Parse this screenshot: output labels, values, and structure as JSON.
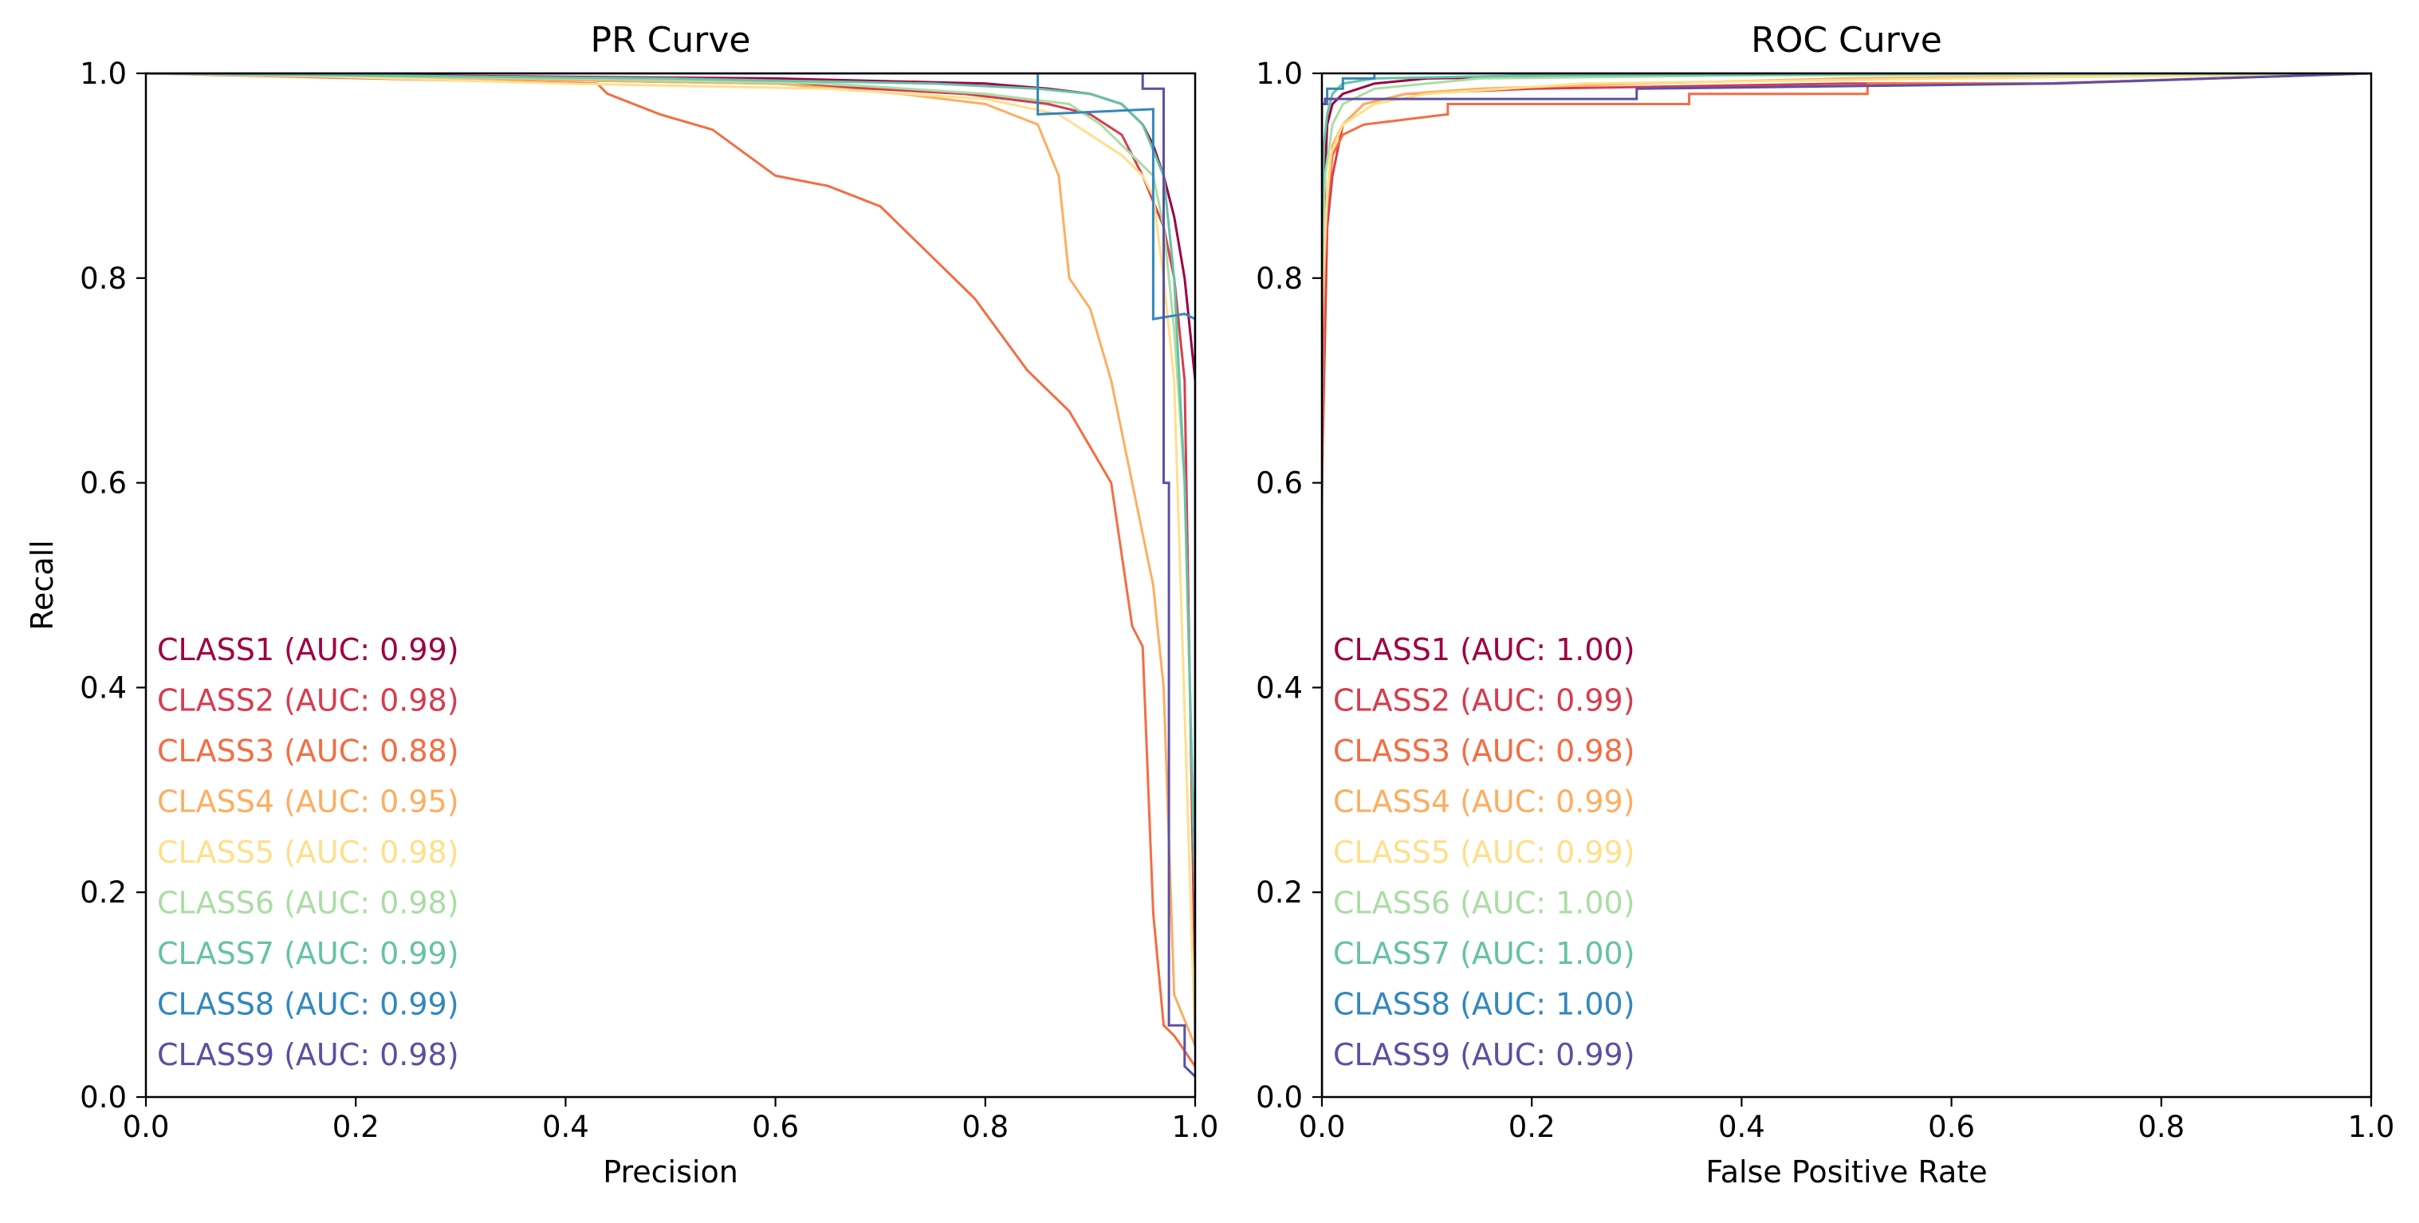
{
  "chart_data": [
    {
      "type": "line",
      "title": "PR Curve",
      "xlabel": "Precision",
      "ylabel": "Recall",
      "xlim": [
        0,
        1
      ],
      "ylim": [
        0,
        1
      ],
      "xticks": [
        "0.0",
        "0.2",
        "0.4",
        "0.6",
        "0.8",
        "1.0"
      ],
      "yticks": [
        "0.0",
        "0.2",
        "0.4",
        "0.6",
        "0.8",
        "1.0"
      ],
      "grid": false,
      "legend": "left, text-only",
      "series": [
        {
          "name": "CLASS1",
          "label": "CLASS1 (AUC: 0.99)",
          "color": "#9e0142",
          "x": [
            0.0,
            0.6,
            0.8,
            0.86,
            0.9,
            0.93,
            0.95,
            0.96,
            0.97,
            0.98,
            0.99,
            1.0,
            1.0
          ],
          "y": [
            1.0,
            0.995,
            0.99,
            0.985,
            0.98,
            0.97,
            0.95,
            0.93,
            0.9,
            0.86,
            0.8,
            0.7,
            0.05
          ]
        },
        {
          "name": "CLASS2",
          "label": "CLASS2 (AUC: 0.98)",
          "color": "#d53e4f",
          "x": [
            0.0,
            0.3,
            0.6,
            0.78,
            0.86,
            0.9,
            0.93,
            0.95,
            0.97,
            0.98,
            0.99,
            1.0
          ],
          "y": [
            1.0,
            0.995,
            0.99,
            0.98,
            0.97,
            0.96,
            0.94,
            0.9,
            0.85,
            0.8,
            0.7,
            0.1
          ]
        },
        {
          "name": "CLASS3",
          "label": "CLASS3 (AUC: 0.88)",
          "color": "#f46d43",
          "x": [
            0.0,
            0.43,
            0.44,
            0.49,
            0.54,
            0.6,
            0.65,
            0.7,
            0.72,
            0.75,
            0.79,
            0.84,
            0.88,
            0.92,
            0.94,
            0.95,
            0.96,
            0.97,
            0.98,
            1.0
          ],
          "y": [
            1.0,
            0.99,
            0.98,
            0.96,
            0.945,
            0.9,
            0.89,
            0.87,
            0.85,
            0.82,
            0.78,
            0.71,
            0.67,
            0.6,
            0.46,
            0.44,
            0.18,
            0.07,
            0.06,
            0.03
          ]
        },
        {
          "name": "CLASS4",
          "label": "CLASS4 (AUC: 0.95)",
          "color": "#fdae61",
          "x": [
            0.0,
            0.3,
            0.6,
            0.72,
            0.8,
            0.85,
            0.87,
            0.88,
            0.9,
            0.92,
            0.93,
            0.94,
            0.95,
            0.96,
            0.97,
            0.98,
            1.0
          ],
          "y": [
            1.0,
            0.995,
            0.99,
            0.98,
            0.97,
            0.95,
            0.9,
            0.8,
            0.77,
            0.7,
            0.65,
            0.6,
            0.55,
            0.5,
            0.4,
            0.1,
            0.05
          ]
        },
        {
          "name": "CLASS5",
          "label": "CLASS5 (AUC: 0.98)",
          "color": "#fee08b",
          "x": [
            0.0,
            0.17,
            0.4,
            0.65,
            0.8,
            0.87,
            0.9,
            0.93,
            0.95,
            0.96,
            0.97,
            0.98,
            1.0
          ],
          "y": [
            1.0,
            0.997,
            0.99,
            0.985,
            0.975,
            0.96,
            0.94,
            0.92,
            0.9,
            0.88,
            0.8,
            0.7,
            0.05
          ]
        },
        {
          "name": "CLASS6",
          "label": "CLASS6 (AUC: 0.98)",
          "color": "#abdda4",
          "x": [
            0.0,
            0.4,
            0.65,
            0.8,
            0.88,
            0.91,
            0.94,
            0.96,
            0.97,
            0.98,
            0.99,
            1.0
          ],
          "y": [
            1.0,
            0.995,
            0.99,
            0.98,
            0.97,
            0.95,
            0.92,
            0.9,
            0.85,
            0.75,
            0.6,
            0.2
          ]
        },
        {
          "name": "CLASS7",
          "label": "CLASS7 (AUC: 0.99)",
          "color": "#66c2a5",
          "x": [
            0.0,
            0.5,
            0.75,
            0.85,
            0.9,
            0.93,
            0.95,
            0.97,
            0.98,
            0.99,
            1.0
          ],
          "y": [
            1.0,
            0.995,
            0.99,
            0.985,
            0.98,
            0.97,
            0.95,
            0.9,
            0.8,
            0.6,
            0.2
          ]
        },
        {
          "name": "CLASS8",
          "label": "CLASS8 (AUC: 0.99)",
          "color": "#3288bd",
          "x": [
            0.0,
            0.85,
            0.85,
            0.96,
            0.96,
            0.96,
            0.99,
            1.0,
            1.0
          ],
          "y": [
            1.0,
            1.0,
            0.96,
            0.965,
            0.96,
            0.76,
            0.765,
            0.76,
            0.05
          ]
        },
        {
          "name": "CLASS9",
          "label": "CLASS9 (AUC: 0.98)",
          "color": "#5e4fa2",
          "x": [
            0.0,
            0.95,
            0.95,
            0.97,
            0.97,
            0.975,
            0.975,
            0.99,
            0.99,
            1.0
          ],
          "y": [
            1.0,
            1.0,
            0.985,
            0.985,
            0.6,
            0.6,
            0.07,
            0.07,
            0.03,
            0.02
          ]
        }
      ]
    },
    {
      "type": "line",
      "title": "ROC Curve",
      "xlabel": "False Positive Rate",
      "ylabel": "",
      "xlim": [
        0,
        1
      ],
      "ylim": [
        0,
        1
      ],
      "xticks": [
        "0.0",
        "0.2",
        "0.4",
        "0.6",
        "0.8",
        "1.0"
      ],
      "yticks": [
        "0.0",
        "0.2",
        "0.4",
        "0.6",
        "0.8",
        "1.0"
      ],
      "grid": false,
      "legend": "left, text-only",
      "series": [
        {
          "name": "CLASS1",
          "label": "CLASS1 (AUC: 1.00)",
          "color": "#9e0142",
          "x": [
            0.0,
            0.0,
            0.003,
            0.005,
            0.01,
            0.02,
            0.05,
            0.1,
            0.3,
            0.6,
            1.0
          ],
          "y": [
            0.0,
            0.7,
            0.9,
            0.95,
            0.97,
            0.98,
            0.99,
            0.995,
            0.998,
            1.0,
            1.0
          ]
        },
        {
          "name": "CLASS2",
          "label": "CLASS2 (AUC: 0.99)",
          "color": "#d53e4f",
          "x": [
            0.0,
            0.0,
            0.005,
            0.01,
            0.02,
            0.04,
            0.08,
            0.2,
            0.5,
            0.69,
            1.0
          ],
          "y": [
            0.0,
            0.6,
            0.85,
            0.9,
            0.95,
            0.97,
            0.98,
            0.985,
            0.99,
            0.99,
            1.0
          ]
        },
        {
          "name": "CLASS3",
          "label": "CLASS3 (AUC: 0.98)",
          "color": "#f46d43",
          "x": [
            0.0,
            0.0,
            0.003,
            0.01,
            0.02,
            0.04,
            0.12,
            0.12,
            0.35,
            0.35,
            0.52,
            0.52,
            0.69,
            1.0
          ],
          "y": [
            0.0,
            0.58,
            0.85,
            0.92,
            0.94,
            0.95,
            0.96,
            0.97,
            0.97,
            0.98,
            0.98,
            0.99,
            0.99,
            1.0
          ]
        },
        {
          "name": "CLASS4",
          "label": "CLASS4 (AUC: 0.99)",
          "color": "#fdae61",
          "x": [
            0.0,
            0.0,
            0.005,
            0.01,
            0.02,
            0.04,
            0.08,
            0.15,
            0.3,
            0.5,
            1.0
          ],
          "y": [
            0.0,
            0.75,
            0.88,
            0.93,
            0.95,
            0.97,
            0.98,
            0.985,
            0.99,
            0.995,
            1.0
          ]
        },
        {
          "name": "CLASS5",
          "label": "CLASS5 (AUC: 0.99)",
          "color": "#fee08b",
          "x": [
            0.0,
            0.0,
            0.003,
            0.008,
            0.02,
            0.05,
            0.1,
            0.25,
            0.6,
            1.0
          ],
          "y": [
            0.0,
            0.77,
            0.85,
            0.92,
            0.95,
            0.97,
            0.98,
            0.99,
            0.995,
            1.0
          ]
        },
        {
          "name": "CLASS6",
          "label": "CLASS6 (AUC: 1.00)",
          "color": "#abdda4",
          "x": [
            0.0,
            0.0,
            0.003,
            0.01,
            0.02,
            0.05,
            0.15,
            0.4,
            1.0
          ],
          "y": [
            0.0,
            0.8,
            0.9,
            0.95,
            0.97,
            0.985,
            0.995,
            0.998,
            1.0
          ]
        },
        {
          "name": "CLASS7",
          "label": "CLASS7 (AUC: 1.00)",
          "color": "#66c2a5",
          "x": [
            0.0,
            0.0,
            0.002,
            0.005,
            0.01,
            0.02,
            0.05,
            0.2,
            0.68,
            1.0
          ],
          "y": [
            0.0,
            0.85,
            0.93,
            0.96,
            0.98,
            0.99,
            0.995,
            0.998,
            1.0,
            1.0
          ]
        },
        {
          "name": "CLASS8",
          "label": "CLASS8 (AUC: 1.00)",
          "color": "#3288bd",
          "x": [
            0.0,
            0.0,
            0.005,
            0.005,
            0.02,
            0.02,
            0.05,
            0.05,
            1.0
          ],
          "y": [
            0.0,
            0.97,
            0.97,
            0.985,
            0.985,
            0.995,
            0.995,
            1.0,
            1.0
          ]
        },
        {
          "name": "CLASS9",
          "label": "CLASS9 (AUC: 0.99)",
          "color": "#5e4fa2",
          "x": [
            0.0,
            0.0,
            0.003,
            0.003,
            0.3,
            0.3,
            0.7,
            1.0
          ],
          "y": [
            0.0,
            0.97,
            0.97,
            0.975,
            0.975,
            0.985,
            0.99,
            1.0
          ]
        }
      ]
    }
  ]
}
